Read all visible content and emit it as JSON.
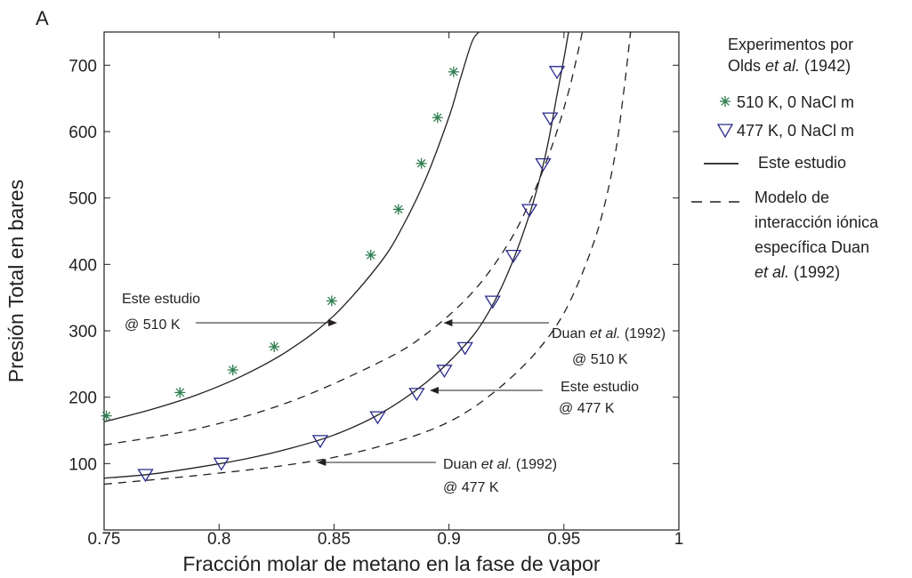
{
  "chart_data": {
    "type": "scatter",
    "panel_label": "A",
    "xlabel": "Fracción molar de metano en la fase de vapor",
    "ylabel": "Presión Total en bares",
    "xlim": [
      0.75,
      1.0
    ],
    "ylim": [
      0,
      750
    ],
    "x_ticks": [
      0.75,
      0.8,
      0.85,
      0.9,
      0.95,
      1.0
    ],
    "x_tick_labels": [
      "0.75",
      "0.8",
      "0.85",
      "0.9",
      "0.95",
      "1"
    ],
    "y_ticks": [
      100,
      200,
      300,
      400,
      500,
      600,
      700
    ],
    "y_tick_labels": [
      "100",
      "200",
      "300",
      "400",
      "500",
      "600",
      "700"
    ],
    "grid": false,
    "legend": {
      "placement": "right, outside plot",
      "title_line1": "Experimentos por",
      "title_line2_a": "Olds ",
      "title_line2_b": "et al.",
      "title_line2_c": " (1942)",
      "items": [
        {
          "label": "510 K, 0 NaCl m",
          "marker": "asterisk"
        },
        {
          "label": "477 K, 0 NaCl m",
          "marker": "triangle-down"
        },
        {
          "label": "Este estudio",
          "marker": "solid-line"
        },
        {
          "line1": "Modelo de",
          "line2": "interacción iónica",
          "line3": "específica Duan",
          "line4_a": "et al.",
          "line4_b": " (1992)",
          "marker": "dashed-line"
        }
      ]
    },
    "series": [
      {
        "name": "510 K, 0 NaCl m",
        "kind": "markers",
        "marker": "asterisk",
        "color": "#2e7d4f",
        "points": [
          [
            0.751,
            172
          ],
          [
            0.783,
            207
          ],
          [
            0.806,
            241
          ],
          [
            0.824,
            276
          ],
          [
            0.849,
            345
          ],
          [
            0.866,
            414
          ],
          [
            0.878,
            483
          ],
          [
            0.888,
            552
          ],
          [
            0.895,
            621
          ],
          [
            0.902,
            690
          ]
        ]
      },
      {
        "name": "477 K, 0 NaCl m",
        "kind": "markers",
        "marker": "triangle-down",
        "color": "#2a2a8c",
        "points": [
          [
            0.768,
            83
          ],
          [
            0.801,
            100
          ],
          [
            0.844,
            134
          ],
          [
            0.869,
            170
          ],
          [
            0.886,
            205
          ],
          [
            0.898,
            240
          ],
          [
            0.907,
            274
          ],
          [
            0.919,
            344
          ],
          [
            0.928,
            413
          ],
          [
            0.935,
            482
          ],
          [
            0.941,
            551
          ],
          [
            0.944,
            620
          ],
          [
            0.947,
            690
          ]
        ]
      },
      {
        "kind": "solid-line",
        "points": [
          [
            0.75,
            163
          ],
          [
            0.77,
            181
          ],
          [
            0.79,
            203
          ],
          [
            0.81,
            232
          ],
          [
            0.83,
            270
          ],
          [
            0.85,
            323
          ],
          [
            0.87,
            402
          ],
          [
            0.88,
            458
          ],
          [
            0.89,
            530
          ],
          [
            0.9,
            622
          ],
          [
            0.905,
            680
          ],
          [
            0.91,
            735
          ],
          [
            0.913,
            750
          ]
        ]
      },
      {
        "kind": "dashed-line",
        "points": [
          [
            0.75,
            128
          ],
          [
            0.79,
            152
          ],
          [
            0.83,
            192
          ],
          [
            0.87,
            253
          ],
          [
            0.89,
            295
          ],
          [
            0.91,
            357
          ],
          [
            0.925,
            427
          ],
          [
            0.935,
            493
          ],
          [
            0.945,
            580
          ],
          [
            0.952,
            660
          ],
          [
            0.956,
            718
          ],
          [
            0.958,
            750
          ]
        ]
      },
      {
        "kind": "solid-line",
        "points": [
          [
            0.75,
            78
          ],
          [
            0.77,
            84
          ],
          [
            0.79,
            94
          ],
          [
            0.81,
            106
          ],
          [
            0.83,
            122
          ],
          [
            0.85,
            143
          ],
          [
            0.87,
            175
          ],
          [
            0.89,
            222
          ],
          [
            0.905,
            271
          ],
          [
            0.915,
            315
          ],
          [
            0.925,
            382
          ],
          [
            0.935,
            475
          ],
          [
            0.942,
            565
          ],
          [
            0.947,
            655
          ],
          [
            0.95,
            710
          ],
          [
            0.952,
            750
          ]
        ]
      },
      {
        "kind": "dashed-line",
        "points": [
          [
            0.75,
            69
          ],
          [
            0.79,
            82
          ],
          [
            0.83,
            98
          ],
          [
            0.86,
            117
          ],
          [
            0.89,
            148
          ],
          [
            0.91,
            183
          ],
          [
            0.93,
            239
          ],
          [
            0.945,
            299
          ],
          [
            0.955,
            362
          ],
          [
            0.965,
            455
          ],
          [
            0.972,
            560
          ],
          [
            0.976,
            660
          ],
          [
            0.978,
            720
          ],
          [
            0.979,
            750
          ]
        ]
      }
    ],
    "annotations": [
      {
        "id": "a510",
        "line1": "Este estudio",
        "line2": "@ 510 K",
        "arrow_to": [
          0.851,
          320
        ]
      },
      {
        "id": "d510",
        "line1_a": "Duan ",
        "line1_b": "et al.",
        "line1_c": " (1992)",
        "line2": "@ 510 K",
        "arrow_to": [
          0.898,
          315
        ]
      },
      {
        "id": "a477",
        "line1": "Este estudio",
        "line2": "@ 477 K",
        "arrow_to": [
          0.892,
          206
        ]
      },
      {
        "id": "d477",
        "line1_a": "Duan ",
        "line1_b": "et al.",
        "line1_c": " (1992)",
        "line2": "@ 477 K",
        "arrow_to": [
          0.843,
          105
        ]
      }
    ]
  }
}
